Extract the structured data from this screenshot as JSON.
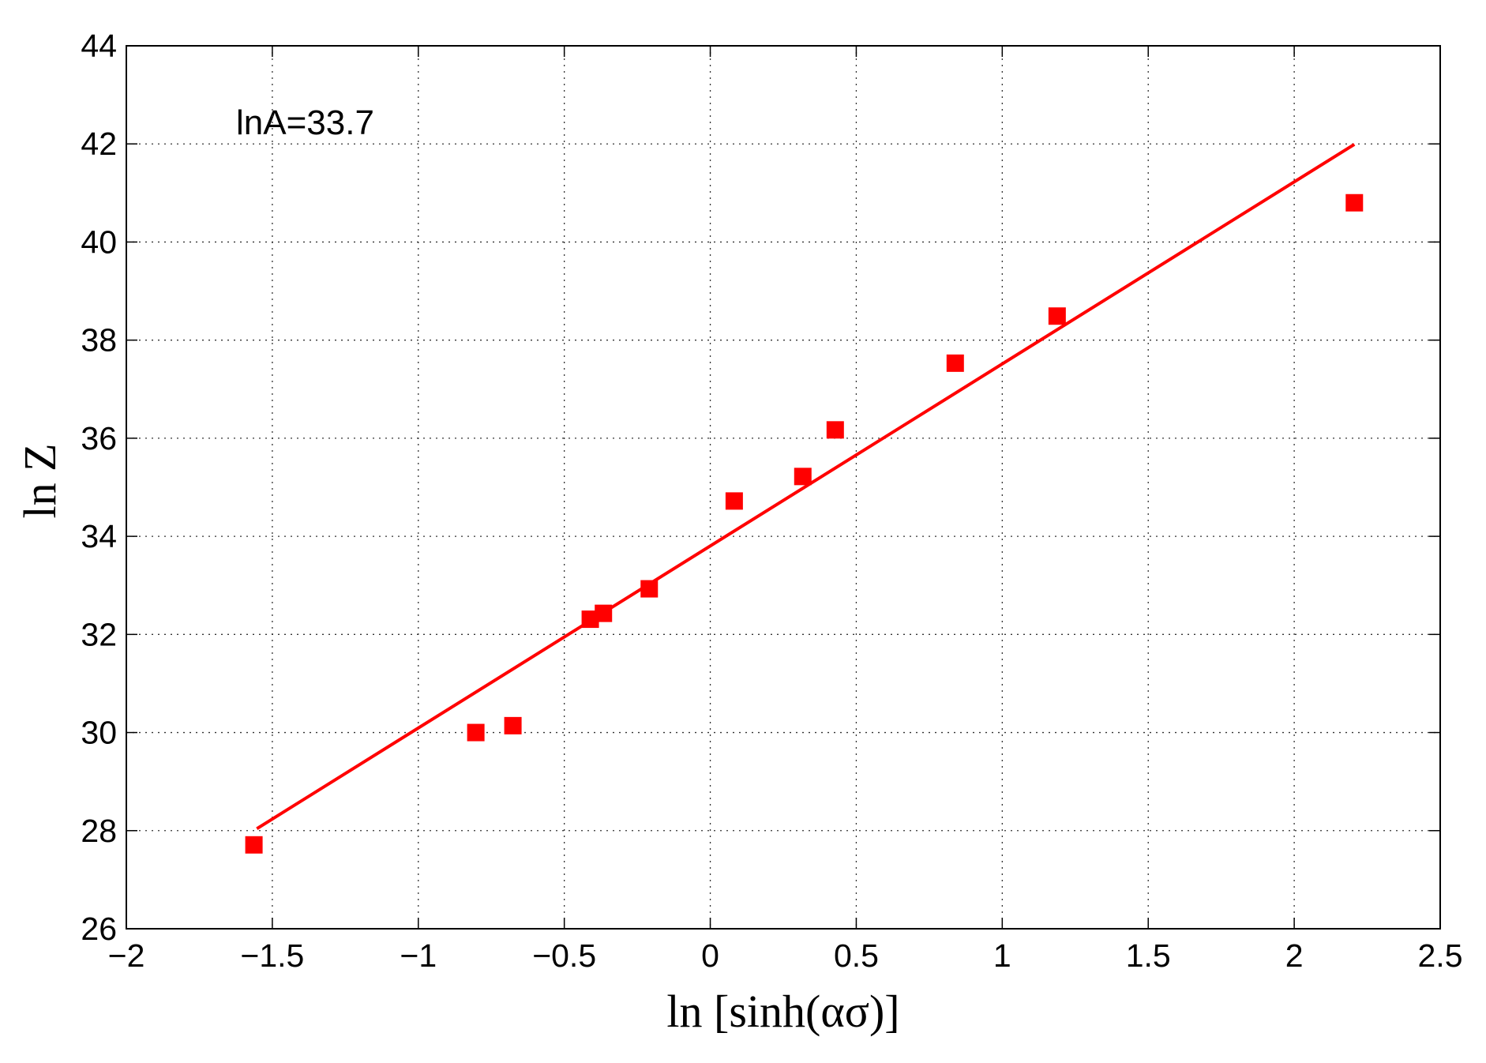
{
  "chart_data": {
    "type": "scatter",
    "xlabel": "ln [sinh(ασ)]",
    "ylabel": "ln Z",
    "annotation": "lnA=33.7",
    "xlim": [
      -2,
      2.5
    ],
    "ylim": [
      26,
      44
    ],
    "xticks": [
      {
        "value": -2,
        "label": "−2"
      },
      {
        "value": -1.5,
        "label": "−1.5"
      },
      {
        "value": -1,
        "label": "−1"
      },
      {
        "value": -0.5,
        "label": "−0.5"
      },
      0,
      0.5,
      1,
      1.5,
      2,
      2.5
    ],
    "yticks": [
      26,
      28,
      30,
      32,
      34,
      36,
      38,
      40,
      42,
      44
    ],
    "grid": true,
    "series": [
      {
        "color": "#ff0000",
        "marker": "square",
        "x": [
          -1.563,
          -0.803,
          -0.676,
          -0.411,
          -0.366,
          -0.209,
          0.082,
          0.317,
          0.428,
          0.839,
          1.188,
          2.206
        ],
        "values": [
          27.71,
          30.0,
          30.14,
          32.31,
          32.43,
          32.93,
          34.72,
          35.22,
          36.17,
          37.53,
          38.49,
          40.8
        ]
      },
      {
        "color": "#ff0000",
        "marker": "line",
        "x": [
          -1.553,
          2.206
        ],
        "values": [
          28.04,
          41.99
        ]
      }
    ]
  }
}
